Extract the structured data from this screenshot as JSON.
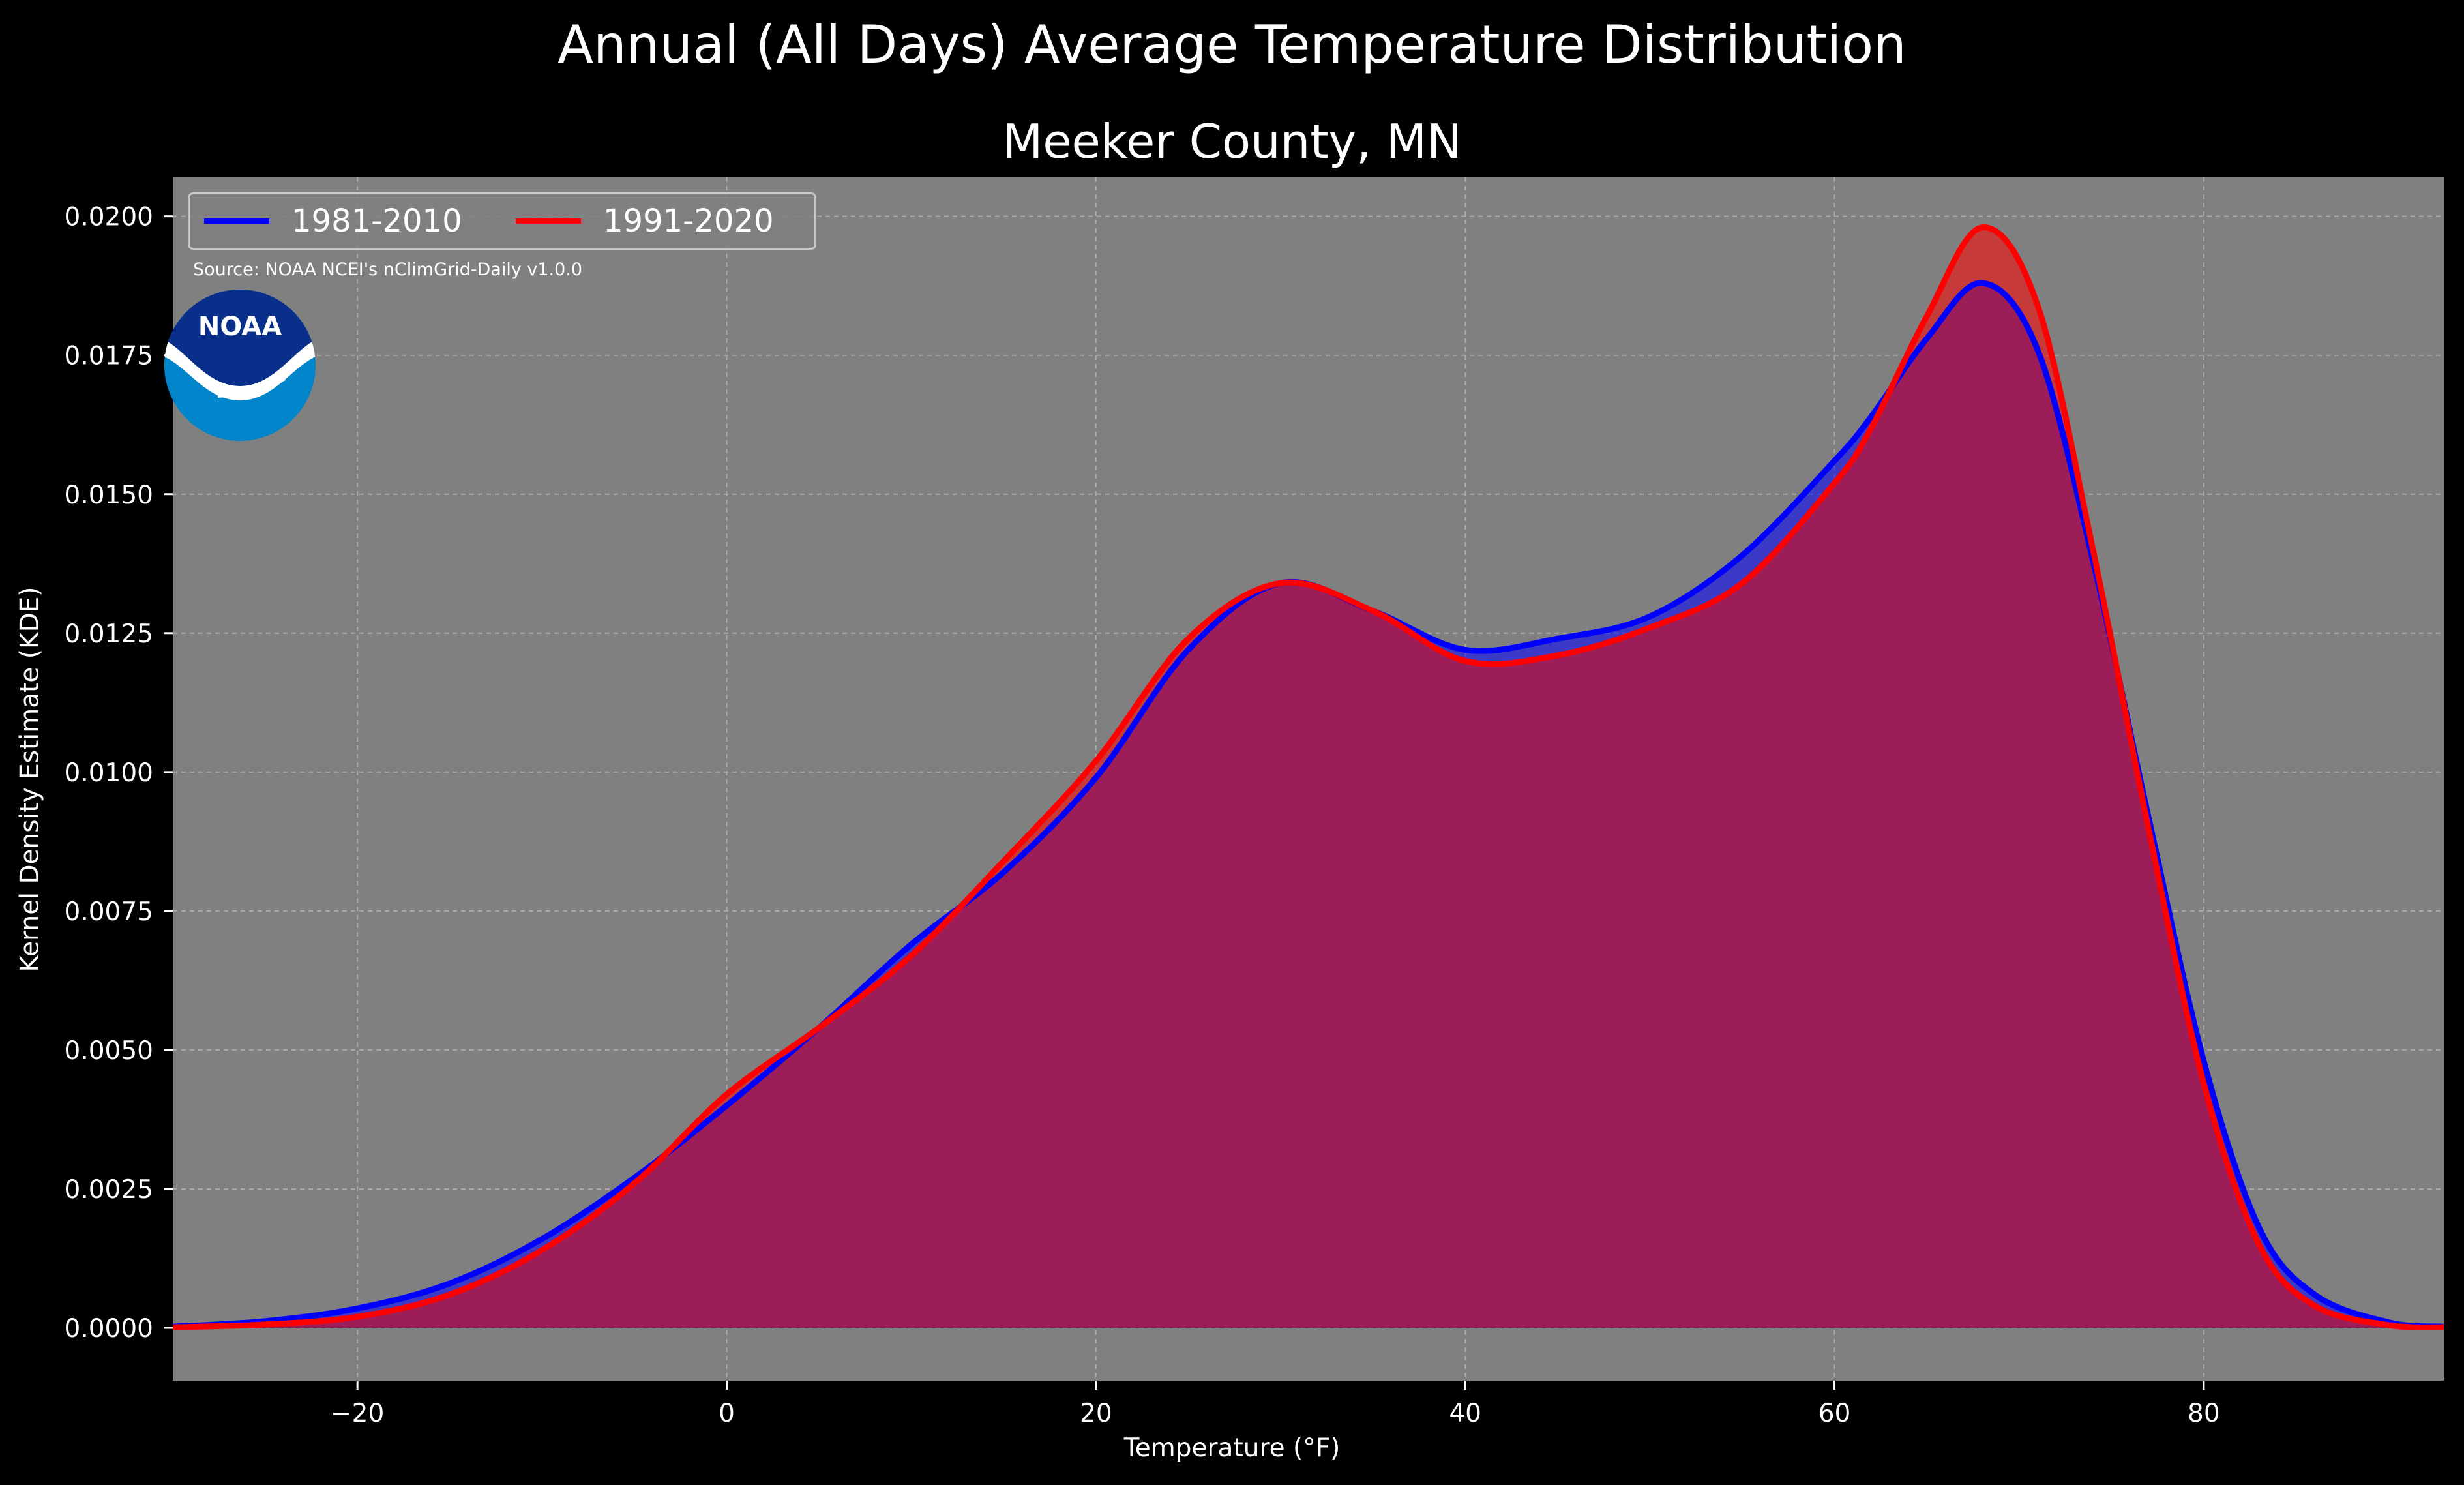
{
  "chart_data": {
    "type": "area",
    "title": "Annual (All Days) Average Temperature Distribution",
    "subtitle": "Meeker County, MN",
    "xlabel": "Temperature (°F)",
    "ylabel": "Kernel Density Estimate (KDE)",
    "xlim": [
      -30,
      93
    ],
    "ylim": [
      -0.00095,
      0.0207
    ],
    "xticks": [
      -20,
      0,
      20,
      40,
      60,
      80
    ],
    "xtick_labels": [
      "−20",
      "0",
      "20",
      "40",
      "60",
      "80"
    ],
    "yticks": [
      0,
      0.0025,
      0.005,
      0.0075,
      0.01,
      0.0125,
      0.015,
      0.0175,
      0.02
    ],
    "ytick_labels": [
      "0.0000",
      "0.0025",
      "0.0050",
      "0.0075",
      "0.0100",
      "0.0125",
      "0.0150",
      "0.0175",
      "0.0200"
    ],
    "grid": true,
    "legend_position": "top-left",
    "series": [
      {
        "name": "1981-2010",
        "color": "#0000ff",
        "x": [
          -30,
          -25,
          -20,
          -15,
          -10,
          -5,
          0,
          5,
          10,
          15,
          20,
          25,
          30,
          35,
          40,
          45,
          50,
          55,
          60,
          62,
          65,
          68,
          71,
          74,
          77,
          80,
          83,
          86,
          90,
          93
        ],
        "y": [
          2e-05,
          0.00012,
          0.00035,
          0.0008,
          0.0016,
          0.0027,
          0.004,
          0.0054,
          0.0069,
          0.0082,
          0.0099,
          0.0122,
          0.0134,
          0.0129,
          0.0122,
          0.0124,
          0.0128,
          0.0139,
          0.0156,
          0.0164,
          0.0178,
          0.0188,
          0.0176,
          0.0138,
          0.0092,
          0.0048,
          0.0018,
          0.0006,
          0.0001,
          2e-05
        ]
      },
      {
        "name": "1991-2020",
        "color": "#ff0000",
        "x": [
          -30,
          -25,
          -20,
          -15,
          -10,
          -5,
          0,
          5,
          10,
          15,
          20,
          25,
          30,
          35,
          40,
          45,
          50,
          55,
          60,
          62,
          65,
          68,
          71,
          74,
          77,
          80,
          83,
          86,
          90,
          93
        ],
        "y": [
          1e-05,
          6e-05,
          0.0002,
          0.0006,
          0.0014,
          0.0026,
          0.0042,
          0.0054,
          0.0067,
          0.0084,
          0.0102,
          0.0124,
          0.0134,
          0.0129,
          0.012,
          0.0121,
          0.0126,
          0.0134,
          0.0152,
          0.0162,
          0.0182,
          0.0198,
          0.0184,
          0.014,
          0.009,
          0.0044,
          0.0015,
          0.0004,
          5e-05,
          1e-05
        ]
      }
    ],
    "source_note": "Source: NOAA NCEI's nClimGrid-Daily v1.0.0"
  },
  "logo": {
    "text": "NOAA",
    "primary_color": "#0a2f8a",
    "secondary_color": "#0085ca"
  },
  "colors": {
    "background": "#000000",
    "plot_background": "#808080",
    "grid": "#b0b0b0",
    "overlap_fill": "#9c1e5a"
  }
}
